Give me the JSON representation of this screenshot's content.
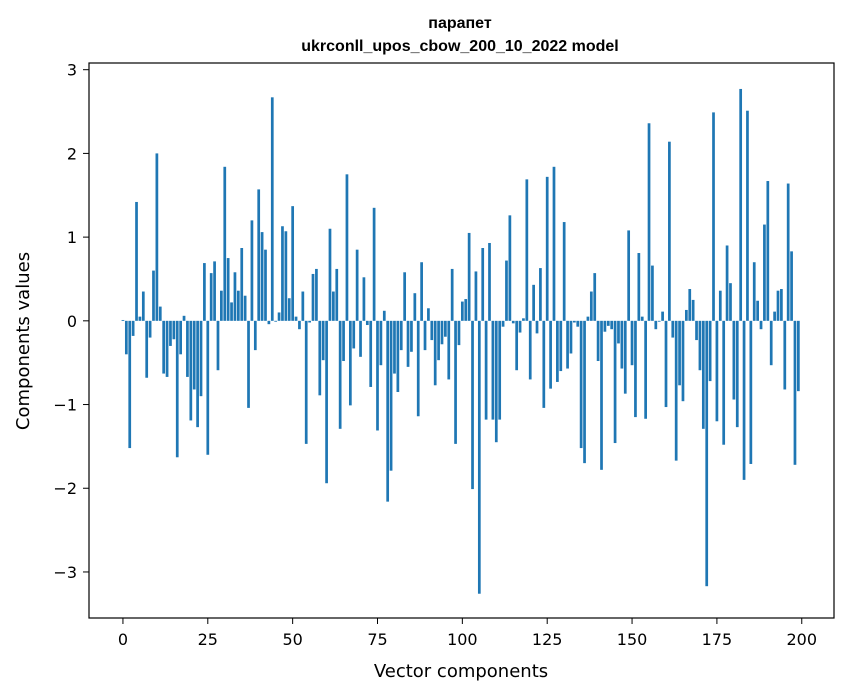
{
  "chart_data": {
    "type": "bar",
    "title_line1": "парапет",
    "title_line2": "ukrconll_upos_cbow_200_10_2022 model",
    "xlabel": "Vector components",
    "ylabel": "Components values",
    "xlim": [
      -10,
      209.5
    ],
    "ylim": [
      -3.55,
      3.08
    ],
    "xticks": [
      0,
      25,
      50,
      75,
      100,
      125,
      150,
      175,
      200
    ],
    "xtick_labels": [
      "0",
      "25",
      "50",
      "75",
      "100",
      "125",
      "150",
      "175",
      "200"
    ],
    "yticks": [
      -3,
      -2,
      -1,
      0,
      1,
      2,
      3
    ],
    "ytick_labels": [
      "−3",
      "−2",
      "−1",
      "0",
      "1",
      "2",
      "3"
    ],
    "bar_color": "#1f77b4",
    "grid": false,
    "values": [
      0.01,
      -0.4,
      -1.52,
      -0.18,
      1.42,
      0.05,
      0.35,
      -0.68,
      -0.2,
      0.6,
      2.0,
      0.17,
      -0.63,
      -0.67,
      -0.3,
      -0.22,
      -1.63,
      -0.4,
      0.06,
      -0.67,
      -1.19,
      -0.82,
      -1.27,
      -0.9,
      0.69,
      -1.6,
      0.57,
      0.71,
      -0.59,
      0.36,
      1.84,
      0.75,
      0.22,
      0.58,
      0.36,
      0.87,
      0.3,
      -1.04,
      1.2,
      -0.35,
      1.57,
      1.06,
      0.85,
      -0.04,
      2.67,
      -0.01,
      0.1,
      1.13,
      1.07,
      0.27,
      1.37,
      0.05,
      -0.1,
      0.35,
      -1.47,
      -0.02,
      0.56,
      0.62,
      -0.89,
      -0.47,
      -1.94,
      1.1,
      0.35,
      0.62,
      -1.29,
      -0.48,
      1.75,
      -1.01,
      -0.33,
      0.85,
      -0.43,
      0.52,
      -0.05,
      -0.79,
      1.35,
      -1.31,
      -0.53,
      0.12,
      -2.16,
      -1.79,
      -0.63,
      -0.85,
      -0.35,
      0.58,
      -0.55,
      -0.37,
      0.33,
      -1.14,
      0.7,
      -0.35,
      0.15,
      -0.23,
      -0.77,
      -0.47,
      -0.28,
      -0.19,
      -0.7,
      0.62,
      -1.47,
      -0.29,
      0.23,
      0.26,
      1.05,
      -2.01,
      0.59,
      -3.26,
      0.87,
      -1.18,
      0.93,
      -1.18,
      -1.45,
      -1.18,
      -0.07,
      0.72,
      1.26,
      -0.03,
      -0.59,
      -0.14,
      0.03,
      1.69,
      -0.7,
      0.43,
      -0.15,
      0.63,
      -1.04,
      1.72,
      -0.81,
      1.84,
      -0.73,
      -0.6,
      1.18,
      -0.57,
      -0.39,
      -0.02,
      -0.07,
      -1.52,
      -1.7,
      0.05,
      0.35,
      0.57,
      -0.48,
      -1.78,
      -0.13,
      -0.06,
      -0.1,
      -1.46,
      -0.27,
      -0.57,
      -0.87,
      1.08,
      -0.53,
      -1.15,
      0.81,
      0.05,
      -1.17,
      2.36,
      0.66,
      -0.1,
      -0.01,
      0.11,
      -1.03,
      2.14,
      -0.2,
      -1.67,
      -0.77,
      -0.96,
      0.13,
      0.38,
      0.25,
      -0.23,
      -0.59,
      -1.29,
      -3.17,
      -0.72,
      2.49,
      -1.2,
      0.36,
      -1.48,
      0.9,
      0.45,
      -0.94,
      -1.27,
      2.77,
      -1.9,
      2.51,
      -1.71,
      0.7,
      0.24,
      -0.1,
      1.15,
      1.67,
      -0.53,
      0.11,
      0.36,
      0.38,
      -0.82,
      1.64,
      0.83,
      -1.72,
      -0.84
    ]
  }
}
